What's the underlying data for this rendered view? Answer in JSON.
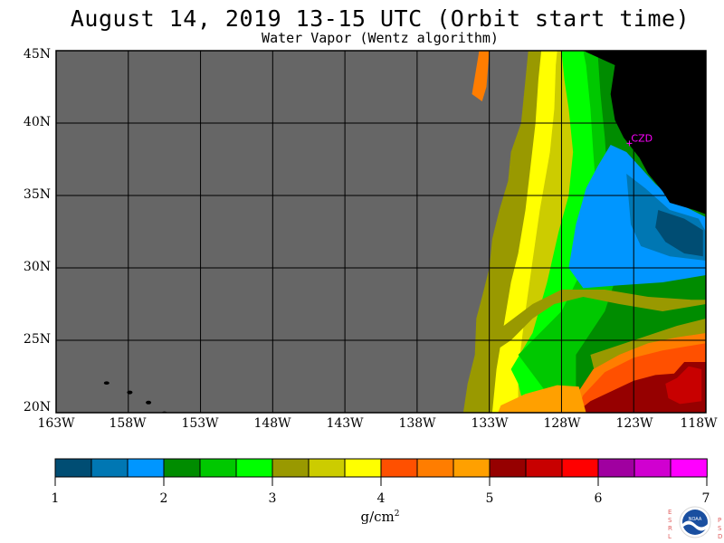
{
  "title": "August 14, 2019  13-15 UTC  (Orbit start time)",
  "subtitle": "Water Vapor (Wentz algorithm)",
  "map": {
    "lon_range": [
      -163,
      -118
    ],
    "lat_range": [
      20,
      45
    ],
    "land_color": "#000000",
    "no_data_color": "#666666",
    "grid_color": "#000000",
    "station": {
      "label": "CZD",
      "lon": -123.3,
      "lat": 38.6,
      "color": "#ff00ff"
    }
  },
  "y_labels": [
    "45N",
    "40N",
    "35N",
    "30N",
    "25N",
    "20N"
  ],
  "x_labels": [
    "163W",
    "158W",
    "153W",
    "148W",
    "143W",
    "138W",
    "133W",
    "128W",
    "123W",
    "118W"
  ],
  "colorbar": {
    "colors": [
      "#004d73",
      "#0077b3",
      "#0096ff",
      "#008c00",
      "#00c800",
      "#00ff00",
      "#999900",
      "#cccc00",
      "#ffff00",
      "#ff5000",
      "#ff7d00",
      "#ffa000",
      "#960000",
      "#c80000",
      "#ff0000",
      "#a000a0",
      "#d000d0",
      "#ff00ff"
    ],
    "tick_labels": [
      "1",
      "2",
      "3",
      "4",
      "5",
      "6",
      "7"
    ],
    "min": 1,
    "max": 7,
    "unit": "g/cm"
  },
  "logo": {
    "left_letters": "ESRL",
    "right_letters": "PSD",
    "center_text": "NOAA"
  }
}
